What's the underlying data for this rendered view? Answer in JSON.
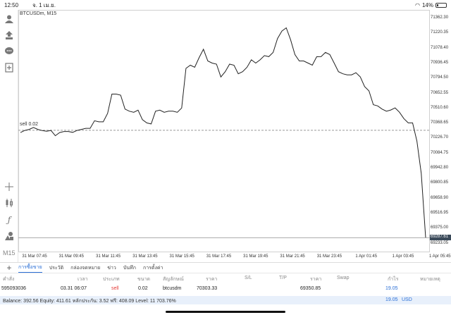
{
  "status": {
    "time": "12:50",
    "date": "จ. 1 เม.ย.",
    "battery": "14%"
  },
  "chart": {
    "symbol": "BTCUSDm, M15",
    "level_label": "sell 0.02",
    "level_price": 70303.33,
    "current_price_label": "69287.61",
    "yticks": [
      "71362.30",
      "71220.35",
      "71078.40",
      "70936.45",
      "70794.50",
      "70652.55",
      "70510.60",
      "70368.65",
      "70226.70",
      "70084.75",
      "69942.80",
      "69800.85",
      "69658.90",
      "69516.95",
      "69375.00",
      "69233.05"
    ],
    "xticks": [
      "31 Mar 07:45",
      "31 Mar 09:45",
      "31 Mar 11:45",
      "31 Mar 13:45",
      "31 Mar 15:45",
      "31 Mar 17:45",
      "31 Mar 19:45",
      "31 Mar 21:45",
      "31 Mar 23:45",
      "1 Apr 01:45",
      "1 Apr 03:45",
      "1 Apr 05:45"
    ],
    "close_prices": [
      70282,
      70302,
      70312,
      70330,
      70312,
      70301,
      70294,
      70302,
      70252,
      70282,
      70292,
      70292,
      70284,
      70302,
      70312,
      70322,
      70322,
      70393,
      70383,
      70383,
      70464,
      70646,
      70646,
      70636,
      70504,
      70484,
      70474,
      70494,
      70404,
      70373,
      70363,
      70484,
      70494,
      70474,
      70484,
      70484,
      70474,
      70514,
      70889,
      70919,
      70899,
      70990,
      71070,
      70959,
      70939,
      70929,
      70808,
      70858,
      70929,
      70919,
      70838,
      70858,
      70899,
      70970,
      70939,
      70970,
      71010,
      71000,
      71040,
      71171,
      71242,
      71272,
      71161,
      71020,
      70959,
      70959,
      70939,
      70919,
      70999,
      71000,
      71040,
      71020,
      70939,
      70858,
      70838,
      70828,
      70828,
      70848,
      70808,
      70717,
      70676,
      70545,
      70534,
      70504,
      70484,
      70495,
      70515,
      70474,
      70414,
      70373,
      70373,
      70202,
      69895,
      69289
    ]
  },
  "toolbar": {
    "timeframe": "M15"
  },
  "tabs": [
    "การซื้อขาย",
    "ประวัติ",
    "กล่องจดหมาย",
    "ข่าว",
    "บันทึก",
    "การตั้งค่า"
  ],
  "table": {
    "headers": [
      "คำสั่ง",
      "เวลา",
      "ประเภท",
      "ขนาด",
      "สัญลักษณ์",
      "ราคา",
      "S/L",
      "T/P",
      "ราคา",
      "Swap",
      "กำไร",
      "หมายเหตุ"
    ],
    "row": {
      "order": "595093036",
      "time": "03.31 06:07",
      "type": "sell",
      "size": "0.02",
      "symbol": "btcusdm",
      "open_price": "70303.33",
      "sl": "",
      "tp": "",
      "price": "69350.85",
      "swap": "",
      "profit": "19.05",
      "comment": ""
    }
  },
  "balance": {
    "text": "Balance: 392.56 Equity: 411.61 หลักประกัน: 3.52 ฟรี: 408.09 Level: 11 703.76%",
    "profit": "19.05",
    "currency": "USD"
  },
  "colors": {
    "accent": "#2a6fd6",
    "sell": "#e53935",
    "price_tag": "#3b4a5a"
  }
}
